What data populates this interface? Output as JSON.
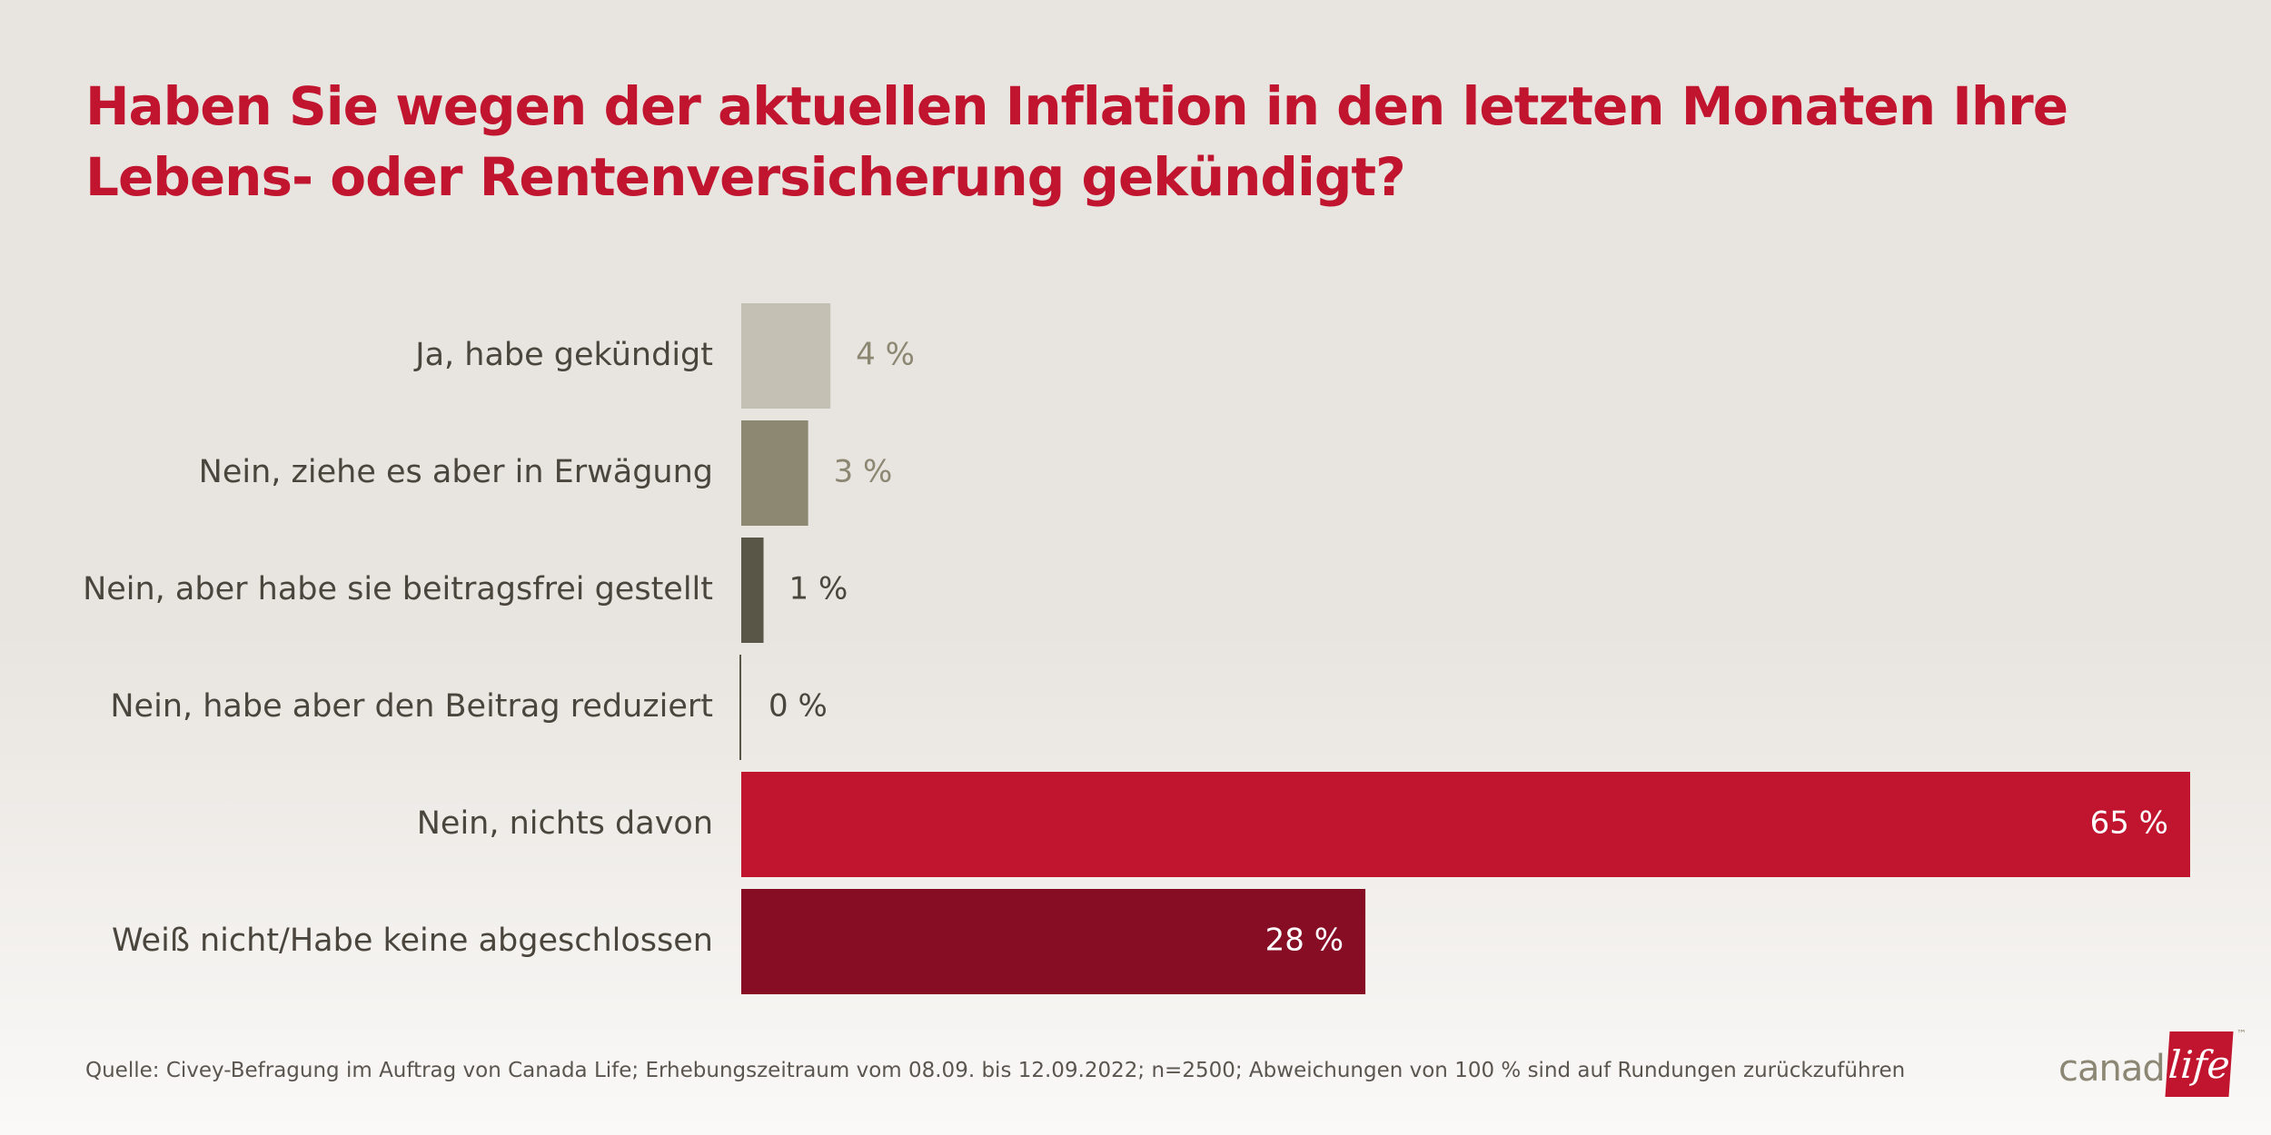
{
  "header": {
    "title_line1": "Haben Sie wegen der aktuellen Inflation in den letzten Monaten Ihre",
    "title_line2": "Lebens- oder Rentenversicherung gekündigt?"
  },
  "chart_data": {
    "type": "bar",
    "orientation": "horizontal",
    "title": "Haben Sie wegen der aktuellen Inflation in den letzten Monaten Ihre Lebens- oder Rentenversicherung gekündigt?",
    "categories": [
      "Ja, habe gekündigt",
      "Nein, ziehe es aber in Erwägung",
      "Nein, aber habe sie beitragsfrei gestellt",
      "Nein, habe aber den Beitrag reduziert",
      "Nein, nichts davon",
      "Weiß nicht/Habe keine abgeschlossen"
    ],
    "values": [
      4,
      3,
      1,
      0,
      65,
      28
    ],
    "value_labels": [
      "4 %",
      "3 %",
      "1 %",
      "0 %",
      "65 %",
      "28 %"
    ],
    "bar_colors": [
      "#c4c0b4",
      "#8c8872",
      "#595648",
      "#595648",
      "#c1152f",
      "#870d25"
    ],
    "value_label_colors": [
      "#8c8772",
      "#8c8772",
      "#4a463d",
      "#4a463d",
      "#ffffff",
      "#ffffff"
    ],
    "value_label_inside": [
      false,
      false,
      false,
      false,
      true,
      true
    ],
    "xlim": [
      0,
      65
    ],
    "grid": false,
    "legend": "none"
  },
  "footer": {
    "source": "Quelle: Civey-Befragung im Auftrag von Canada Life; Erhebungszeitraum vom 08.09. bis 12.09.2022; n=2500; Abweichungen von 100 % sind auf Rundungen zurückzuführen"
  },
  "logo": {
    "text_left": "canada",
    "text_box": "life",
    "trademark": "™"
  }
}
